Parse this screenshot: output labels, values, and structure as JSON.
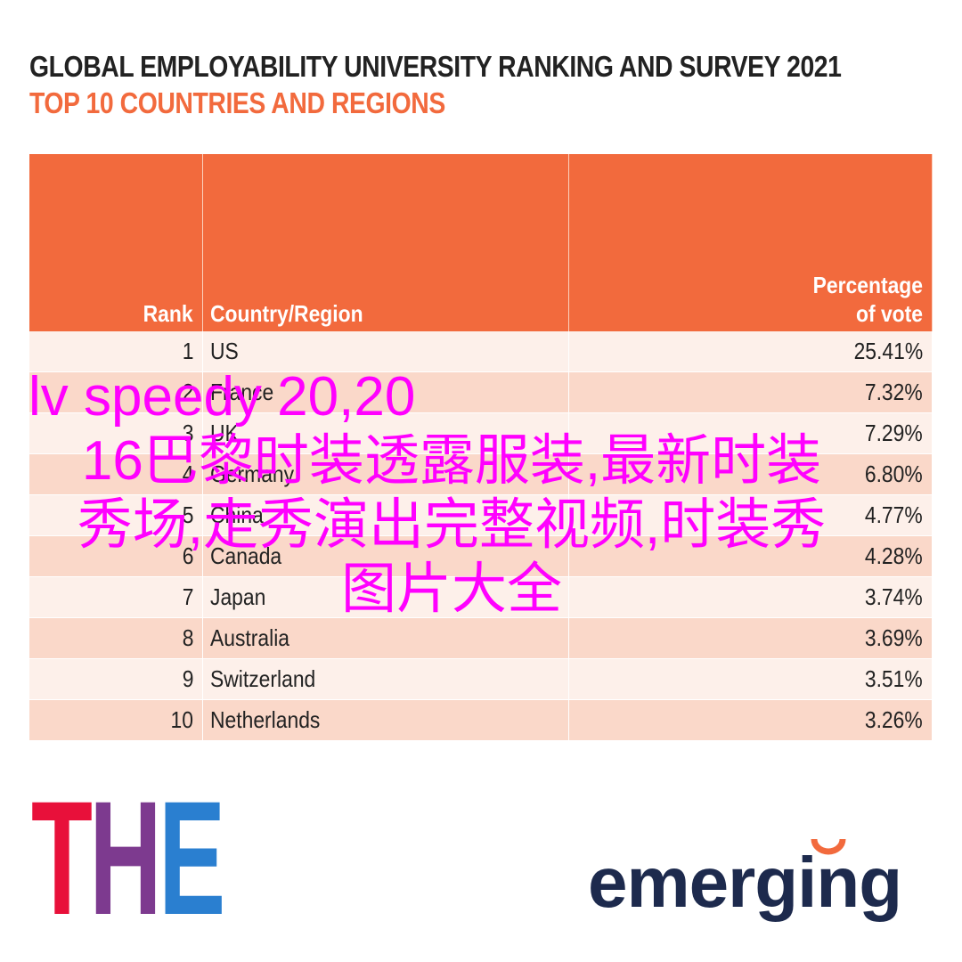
{
  "header": {
    "title": "GLOBAL EMPLOYABILITY UNIVERSITY RANKING AND SURVEY 2021",
    "subtitle": "TOP 10 COUNTRIES AND REGIONS"
  },
  "table": {
    "columns": [
      "Rank",
      "Country/Region",
      "Percentage of vote"
    ],
    "rows": [
      [
        "1",
        "US",
        "25.41%"
      ],
      [
        "2",
        "France",
        "7.32%"
      ],
      [
        "3",
        "UK",
        "7.29%"
      ],
      [
        "4",
        "Germany",
        "6.80%"
      ],
      [
        "5",
        "China",
        "4.77%"
      ],
      [
        "6",
        "Canada",
        "4.28%"
      ],
      [
        "7",
        "Japan",
        "3.74%"
      ],
      [
        "8",
        "Australia",
        "3.69%"
      ],
      [
        "9",
        "Switzerland",
        "3.51%"
      ],
      [
        "10",
        "Netherlands",
        "3.26%"
      ]
    ]
  },
  "logos": {
    "left": [
      "T",
      "H",
      "E"
    ],
    "right": "emerging"
  },
  "overlay": {
    "lines": [
      "lv speedy 20,20",
      "16巴黎时装透露服装,最新时装",
      "秀场,走秀演出完整视频,时装秀",
      "图片大全"
    ]
  }
}
